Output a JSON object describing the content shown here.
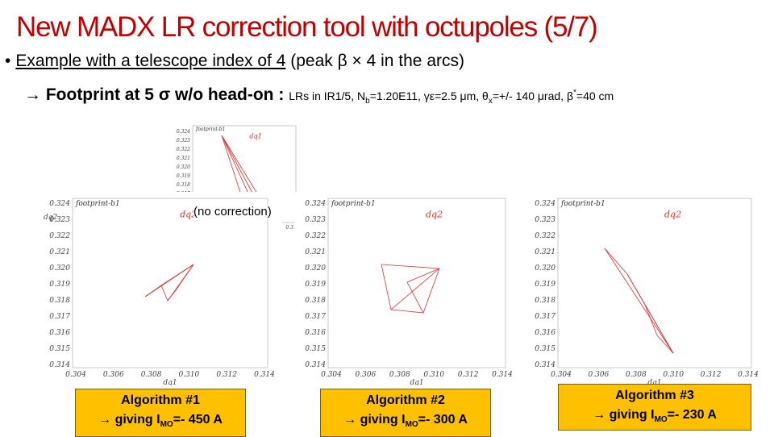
{
  "title": "New MADX LR correction tool with octupoles (5/7)",
  "bullet": {
    "symbol": "•",
    "text_underlined": "Example with a telescope index of 4",
    "text_rest": " (peak β × 4 in the arcs)"
  },
  "subline": {
    "arrow": "→",
    "main": " Footprint at 5 σ w/o head-on : ",
    "detail_a": "LRs in IR1/5, N",
    "detail_a_sub": "b",
    "detail_b": "=1.20E11, γε=2.5 μm,  θ",
    "detail_b_sub": "x",
    "detail_c": "=+/- 140 μrad, β",
    "detail_c_sup": "*",
    "detail_d": "=40 cm"
  },
  "plot_common": {
    "title_label": "footprint-b1",
    "xlabel": "dq1",
    "ylabel": "dq2",
    "series_label": "dq2",
    "series_label_nocorr": "dq1",
    "xticks": [
      "0.304",
      "0.306",
      "0.308",
      "0.310",
      "0.312",
      "0.314"
    ],
    "yticks": [
      "0.324",
      "0.323",
      "0.322",
      "0.321",
      "0.320",
      "0.319",
      "0.318",
      "0.317",
      "0.316",
      "0.315",
      "0.314"
    ],
    "line_color": "#e03030"
  },
  "nocorr_label": "(no correction)",
  "algorithms": [
    {
      "name": "Algorithm #1",
      "giving": "giving I",
      "sub": "MO",
      "value": "=- 450 A"
    },
    {
      "name": "Algorithm #2",
      "giving": "giving I",
      "sub": "MO",
      "value": "=- 300 A"
    },
    {
      "name": "Algorithm #3",
      "giving": "giving I",
      "sub": "MO",
      "value": "=- 230 A"
    }
  ],
  "arrow": "→"
}
